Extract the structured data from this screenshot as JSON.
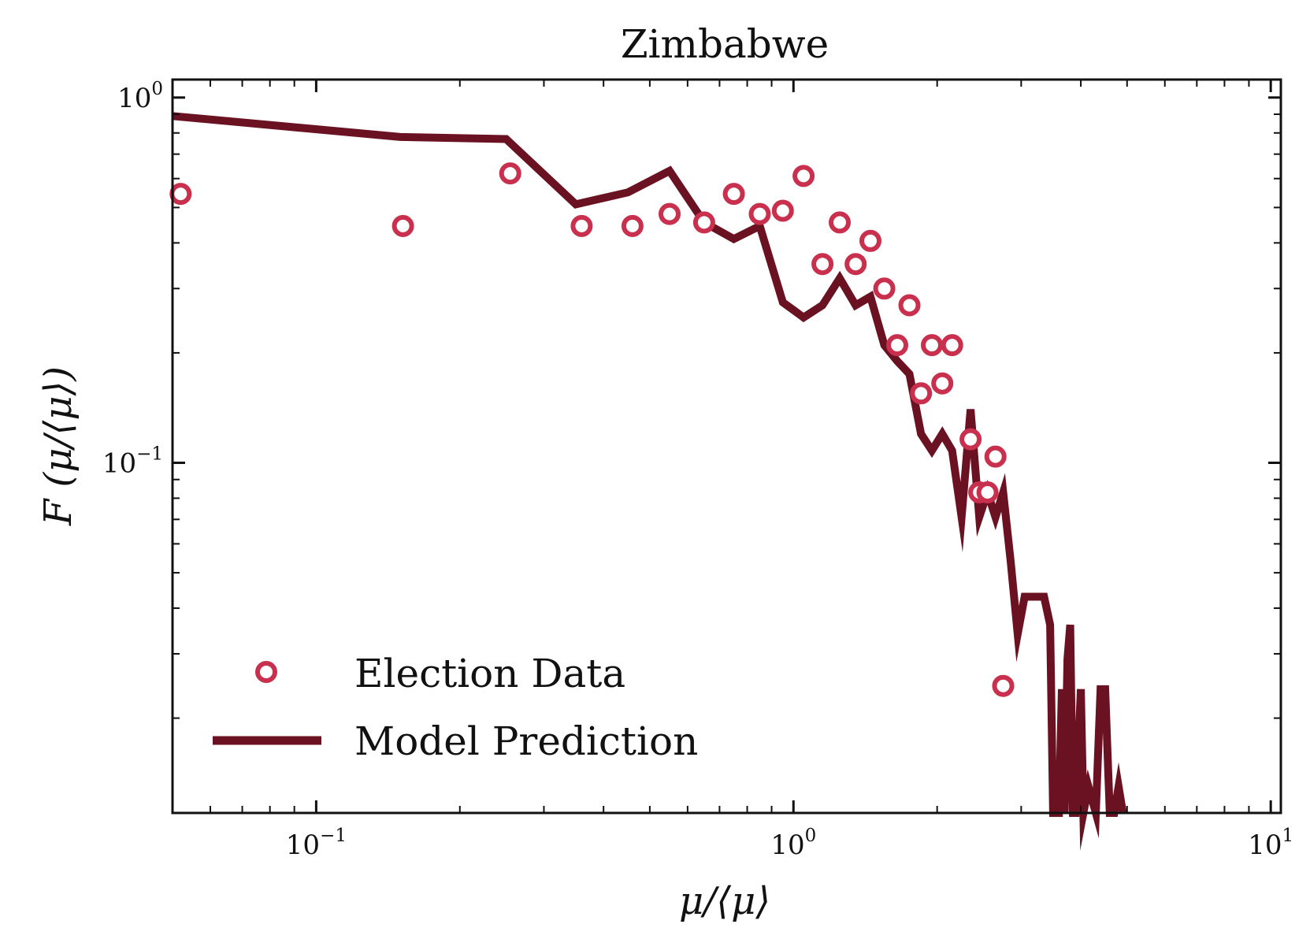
{
  "chart_data": {
    "type": "line",
    "title": "Zimbabwe",
    "xlabel": "μ/⟨μ⟩",
    "ylabel": "F (μ/⟨μ⟩)",
    "x_scale": "log",
    "y_scale": "log",
    "xlim": [
      0.05,
      10.5
    ],
    "ylim": [
      0.011,
      1.12
    ],
    "grid": false,
    "legend_placement": "lower-left",
    "x_ticks": [
      {
        "base": "10",
        "exp": "−1",
        "value": 0.1
      },
      {
        "base": "10",
        "exp": "0",
        "value": 1
      },
      {
        "base": "10",
        "exp": "1",
        "value": 10
      }
    ],
    "y_ticks": [
      {
        "base": "10",
        "exp": "0",
        "value": 1
      },
      {
        "base": "10",
        "exp": "−1",
        "value": 0.1
      }
    ],
    "series": [
      {
        "name": "Election Data",
        "kind": "scatter",
        "color": "#c8304e",
        "points": [
          [
            0.052,
            0.545
          ],
          [
            0.152,
            0.445
          ],
          [
            0.255,
            0.62
          ],
          [
            0.36,
            0.445
          ],
          [
            0.46,
            0.445
          ],
          [
            0.55,
            0.48
          ],
          [
            0.65,
            0.455
          ],
          [
            0.75,
            0.545
          ],
          [
            0.85,
            0.48
          ],
          [
            0.95,
            0.49
          ],
          [
            1.05,
            0.61
          ],
          [
            1.15,
            0.35
          ],
          [
            1.25,
            0.455
          ],
          [
            1.35,
            0.35
          ],
          [
            1.45,
            0.405
          ],
          [
            1.55,
            0.3
          ],
          [
            1.65,
            0.21
          ],
          [
            1.75,
            0.27
          ],
          [
            1.85,
            0.155
          ],
          [
            1.95,
            0.21
          ],
          [
            2.05,
            0.165
          ],
          [
            2.15,
            0.21
          ],
          [
            2.35,
            0.116
          ],
          [
            2.45,
            0.083
          ],
          [
            2.55,
            0.083
          ],
          [
            2.65,
            0.104
          ],
          [
            2.75,
            0.0245
          ]
        ]
      },
      {
        "name": "Model Prediction",
        "kind": "line",
        "color": "#6b1222",
        "points": [
          [
            0.05,
            0.89
          ],
          [
            0.15,
            0.78
          ],
          [
            0.25,
            0.77
          ],
          [
            0.35,
            0.51
          ],
          [
            0.45,
            0.55
          ],
          [
            0.55,
            0.63
          ],
          [
            0.65,
            0.455
          ],
          [
            0.75,
            0.41
          ],
          [
            0.85,
            0.445
          ],
          [
            0.95,
            0.275
          ],
          [
            1.05,
            0.25
          ],
          [
            1.15,
            0.27
          ],
          [
            1.25,
            0.32
          ],
          [
            1.35,
            0.27
          ],
          [
            1.45,
            0.285
          ],
          [
            1.55,
            0.21
          ],
          [
            1.65,
            0.19
          ],
          [
            1.75,
            0.175
          ],
          [
            1.85,
            0.12
          ],
          [
            1.95,
            0.108
          ],
          [
            2.05,
            0.12
          ],
          [
            2.15,
            0.108
          ],
          [
            2.25,
            0.071
          ],
          [
            2.35,
            0.14
          ],
          [
            2.45,
            0.071
          ],
          [
            2.55,
            0.083
          ],
          [
            2.65,
            0.071
          ],
          [
            2.75,
            0.083
          ],
          [
            2.85,
            0.054
          ],
          [
            2.95,
            0.034
          ],
          [
            3.05,
            0.043
          ],
          [
            3.15,
            0.043
          ],
          [
            3.25,
            0.043
          ],
          [
            3.35,
            0.043
          ],
          [
            3.45,
            0.036
          ],
          [
            3.5,
            0.011
          ],
          [
            3.6,
            0.011
          ],
          [
            3.65,
            0.024
          ],
          [
            3.7,
            0.011
          ],
          [
            3.75,
            0.029
          ],
          [
            3.8,
            0.036
          ],
          [
            3.85,
            0.011
          ],
          [
            3.9,
            0.011
          ],
          [
            4.0,
            0.024
          ],
          [
            4.05,
            0.011
          ],
          [
            4.15,
            0.013
          ],
          [
            4.3,
            0.011
          ],
          [
            4.4,
            0.024
          ],
          [
            4.5,
            0.024
          ],
          [
            4.6,
            0.011
          ],
          [
            4.7,
            0.011
          ],
          [
            4.8,
            0.013
          ],
          [
            4.9,
            0.011
          ]
        ]
      }
    ]
  }
}
